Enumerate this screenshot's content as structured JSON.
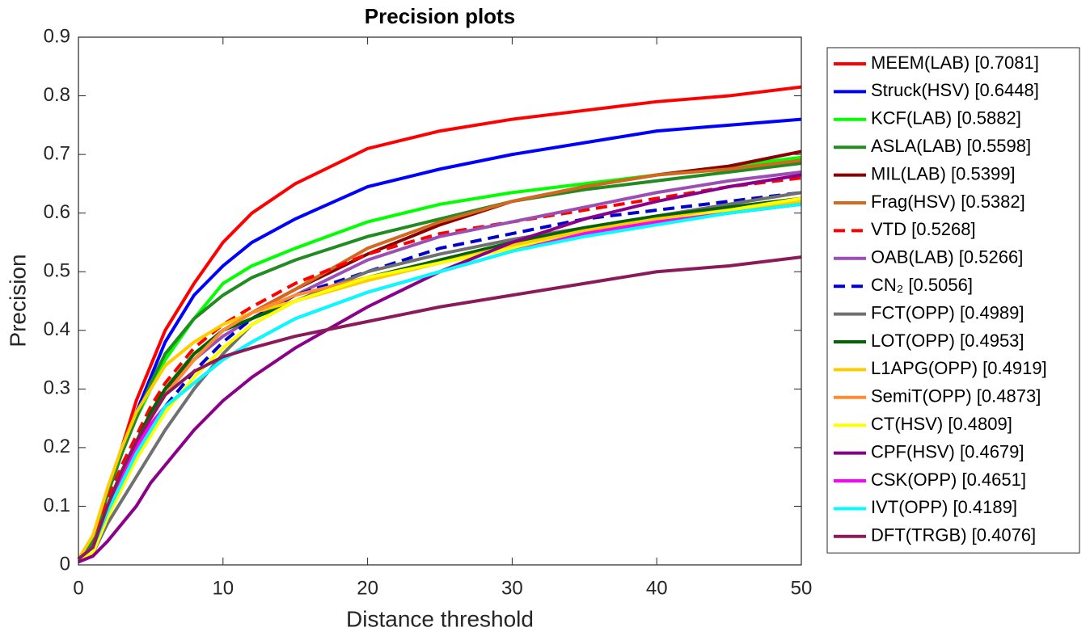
{
  "chart_data": {
    "type": "line",
    "title": "Precision plots",
    "x_label": "Distance threshold",
    "y_label": "Precision",
    "x": [
      0,
      1,
      2,
      3,
      4,
      5,
      6,
      8,
      10,
      12,
      15,
      20,
      25,
      30,
      35,
      40,
      45,
      50
    ],
    "xlim": [
      0,
      50
    ],
    "xticks": [
      0,
      10,
      20,
      30,
      40,
      50
    ],
    "ylim": [
      0,
      0.9
    ],
    "yticks": [
      0,
      0.1,
      0.2,
      0.3,
      0.4,
      0.5,
      0.6,
      0.7,
      0.8,
      0.9
    ],
    "grid": false,
    "legend": "outside right",
    "series": [
      {
        "name": "MEEM(LAB) [0.7081]",
        "color": "#ff0000",
        "dash": false,
        "values": [
          0.01,
          0.04,
          0.12,
          0.2,
          0.28,
          0.34,
          0.4,
          0.48,
          0.55,
          0.6,
          0.65,
          0.71,
          0.74,
          0.76,
          0.775,
          0.79,
          0.8,
          0.815
        ]
      },
      {
        "name": "Struck(HSV) [0.6448]",
        "color": "#0000ff",
        "dash": false,
        "values": [
          0.01,
          0.04,
          0.12,
          0.19,
          0.26,
          0.32,
          0.38,
          0.46,
          0.51,
          0.55,
          0.59,
          0.645,
          0.675,
          0.7,
          0.72,
          0.74,
          0.75,
          0.76
        ]
      },
      {
        "name": "KCF(LAB) [0.5882]",
        "color": "#00ff00",
        "dash": false,
        "values": [
          0.01,
          0.04,
          0.12,
          0.19,
          0.25,
          0.3,
          0.35,
          0.42,
          0.48,
          0.51,
          0.54,
          0.585,
          0.615,
          0.635,
          0.65,
          0.665,
          0.68,
          0.695
        ]
      },
      {
        "name": "ASLA(LAB) [0.5598]",
        "color": "#228b22",
        "dash": false,
        "values": [
          0.01,
          0.04,
          0.12,
          0.19,
          0.25,
          0.31,
          0.36,
          0.42,
          0.46,
          0.49,
          0.52,
          0.56,
          0.59,
          0.62,
          0.64,
          0.655,
          0.67,
          0.685
        ]
      },
      {
        "name": "MIL(LAB) [0.5399]",
        "color": "#8b0000",
        "dash": false,
        "values": [
          0.01,
          0.03,
          0.1,
          0.16,
          0.21,
          0.26,
          0.3,
          0.35,
          0.4,
          0.43,
          0.47,
          0.53,
          0.58,
          0.62,
          0.645,
          0.665,
          0.68,
          0.705
        ]
      },
      {
        "name": "Frag(HSV) [0.5382]",
        "color": "#d2691e",
        "dash": false,
        "values": [
          0.01,
          0.03,
          0.1,
          0.16,
          0.21,
          0.26,
          0.3,
          0.36,
          0.4,
          0.43,
          0.47,
          0.54,
          0.585,
          0.62,
          0.645,
          0.665,
          0.675,
          0.69
        ]
      },
      {
        "name": "VTD [0.5268]",
        "color": "#ff0000",
        "dash": true,
        "values": [
          0.01,
          0.03,
          0.11,
          0.17,
          0.22,
          0.27,
          0.31,
          0.37,
          0.41,
          0.44,
          0.48,
          0.53,
          0.565,
          0.585,
          0.605,
          0.625,
          0.645,
          0.66
        ]
      },
      {
        "name": "OAB(LAB) [0.5266]",
        "color": "#9b4fb3",
        "dash": false,
        "values": [
          0.01,
          0.03,
          0.1,
          0.16,
          0.21,
          0.25,
          0.29,
          0.35,
          0.39,
          0.42,
          0.46,
          0.52,
          0.56,
          0.585,
          0.61,
          0.635,
          0.655,
          0.67
        ]
      },
      {
        "name": "CN₂ [0.5056]",
        "color": "#0000cd",
        "dash": true,
        "values": [
          0.01,
          0.03,
          0.09,
          0.14,
          0.19,
          0.23,
          0.27,
          0.33,
          0.38,
          0.42,
          0.46,
          0.5,
          0.54,
          0.565,
          0.59,
          0.605,
          0.62,
          0.635
        ]
      },
      {
        "name": "FCT(OPP) [0.4989]",
        "color": "#707070",
        "dash": false,
        "values": [
          0.01,
          0.02,
          0.07,
          0.11,
          0.15,
          0.19,
          0.23,
          0.3,
          0.36,
          0.41,
          0.45,
          0.5,
          0.53,
          0.555,
          0.575,
          0.595,
          0.615,
          0.635
        ]
      },
      {
        "name": "LOT(OPP) [0.4953]",
        "color": "#006400",
        "dash": false,
        "values": [
          0.01,
          0.03,
          0.1,
          0.16,
          0.21,
          0.26,
          0.3,
          0.36,
          0.4,
          0.42,
          0.45,
          0.49,
          0.52,
          0.55,
          0.575,
          0.595,
          0.61,
          0.625
        ]
      },
      {
        "name": "L1APG(OPP) [0.4919]",
        "color": "#ffcc00",
        "dash": false,
        "values": [
          0.01,
          0.05,
          0.13,
          0.2,
          0.26,
          0.3,
          0.34,
          0.38,
          0.41,
          0.43,
          0.45,
          0.485,
          0.515,
          0.545,
          0.57,
          0.59,
          0.605,
          0.62
        ]
      },
      {
        "name": "SemiT(OPP) [0.4873]",
        "color": "#ff8c33",
        "dash": false,
        "values": [
          0.01,
          0.03,
          0.1,
          0.16,
          0.21,
          0.25,
          0.29,
          0.35,
          0.4,
          0.43,
          0.46,
          0.49,
          0.515,
          0.54,
          0.565,
          0.585,
          0.6,
          0.615
        ]
      },
      {
        "name": "CT(HSV) [0.4809]",
        "color": "#ffff00",
        "dash": false,
        "values": [
          0.01,
          0.02,
          0.08,
          0.13,
          0.18,
          0.22,
          0.26,
          0.32,
          0.37,
          0.41,
          0.45,
          0.49,
          0.515,
          0.54,
          0.565,
          0.585,
          0.605,
          0.625
        ]
      },
      {
        "name": "CPF(HSV) [0.4679]",
        "color": "#8b008b",
        "dash": false,
        "values": [
          0.005,
          0.015,
          0.04,
          0.07,
          0.1,
          0.14,
          0.17,
          0.23,
          0.28,
          0.32,
          0.37,
          0.44,
          0.5,
          0.55,
          0.59,
          0.62,
          0.645,
          0.665
        ]
      },
      {
        "name": "CSK(OPP) [0.4651]",
        "color": "#ff00ff",
        "dash": false,
        "values": [
          0.01,
          0.03,
          0.09,
          0.15,
          0.2,
          0.24,
          0.27,
          0.31,
          0.35,
          0.38,
          0.42,
          0.465,
          0.5,
          0.535,
          0.565,
          0.585,
          0.6,
          0.615
        ]
      },
      {
        "name": "IVT(OPP) [0.4189]",
        "color": "#00ffff",
        "dash": false,
        "values": [
          0.01,
          0.03,
          0.09,
          0.14,
          0.19,
          0.23,
          0.27,
          0.31,
          0.35,
          0.38,
          0.42,
          0.465,
          0.5,
          0.535,
          0.56,
          0.58,
          0.6,
          0.615
        ]
      },
      {
        "name": "DFT(TRGB) [0.4076]",
        "color": "#8b1a5a",
        "dash": false,
        "values": [
          0.01,
          0.03,
          0.1,
          0.16,
          0.21,
          0.25,
          0.29,
          0.33,
          0.355,
          0.37,
          0.39,
          0.415,
          0.44,
          0.46,
          0.48,
          0.5,
          0.51,
          0.525
        ]
      }
    ]
  }
}
